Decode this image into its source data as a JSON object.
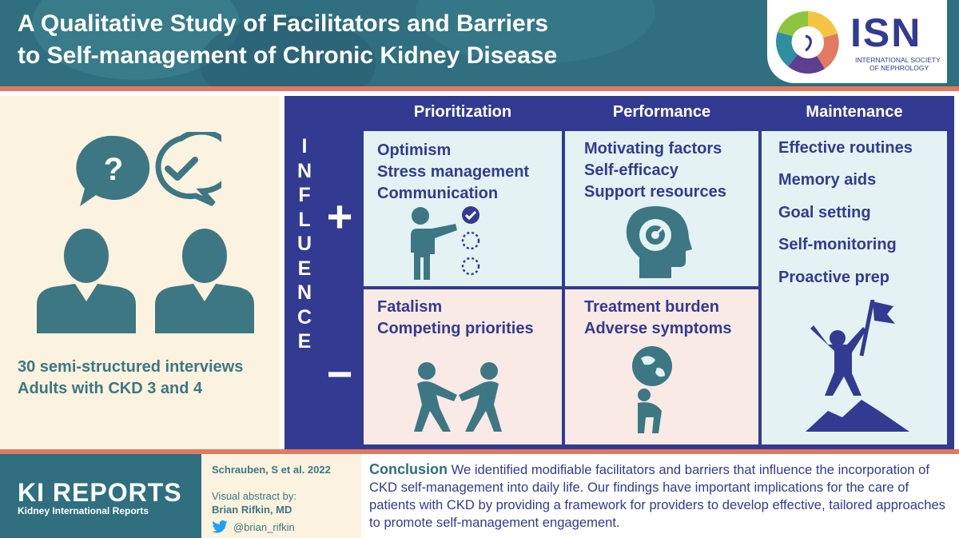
{
  "header": {
    "title_line1": "A Qualitative Study of Facilitators and Barriers",
    "title_line2": "to Self-management of Chronic Kidney Disease",
    "logo": {
      "acronym": "ISN",
      "line1": "INTERNATIONAL SOCIETY",
      "line2": "OF NEPHROLOGY"
    }
  },
  "study": {
    "line1": "30 semi-structured interviews",
    "line2": "Adults with CKD 3 and 4",
    "icons": [
      "question-speech-bubble-icon",
      "checkmark-speech-bubble-icon",
      "person-icon",
      "person-icon"
    ]
  },
  "matrix": {
    "columns": [
      "Prioritization",
      "Performance",
      "Maintenance"
    ],
    "influence_letters": [
      "I",
      "N",
      "F",
      "L",
      "U",
      "E",
      "N",
      "C",
      "E"
    ],
    "plus_sign": "+",
    "minus_sign": "−",
    "prioritization": {
      "positive": [
        "Optimism",
        "Stress management",
        "Communication"
      ],
      "negative": [
        "Fatalism",
        "Competing priorities"
      ]
    },
    "performance": {
      "positive": [
        "Motivating factors",
        "Self-efficacy",
        "Support resources"
      ],
      "negative": [
        "Treatment burden",
        "Adverse symptoms"
      ]
    },
    "maintenance": [
      "Effective routines",
      "Memory aids",
      "Goal setting",
      "Self-monitoring",
      "Proactive prep"
    ]
  },
  "footer": {
    "journal_title": "KI REPORTS",
    "journal_subtitle": "Kidney International Reports",
    "citation": "Schrauben, S et al. 2022",
    "abstract_by_label": "Visual abstract by:",
    "author": "Brian Rifkin, MD",
    "twitter_handle": "@brian_rifkin",
    "conclusion_label": "Conclusion",
    "conclusion_text": "We identified modifiable facilitators and barriers that influence the incorporation of CKD self-management into daily life. Our findings have important implications for the care of patients with CKD by providing a framework for providers to develop effective, tailored approaches to promote self-management engagement."
  },
  "colors": {
    "teal": "#2f6f7f",
    "navy": "#323b91",
    "coral": "#e07a61",
    "cream": "#fbf3df",
    "light_blue": "#e4f2f4",
    "light_pink": "#f9eae6"
  }
}
